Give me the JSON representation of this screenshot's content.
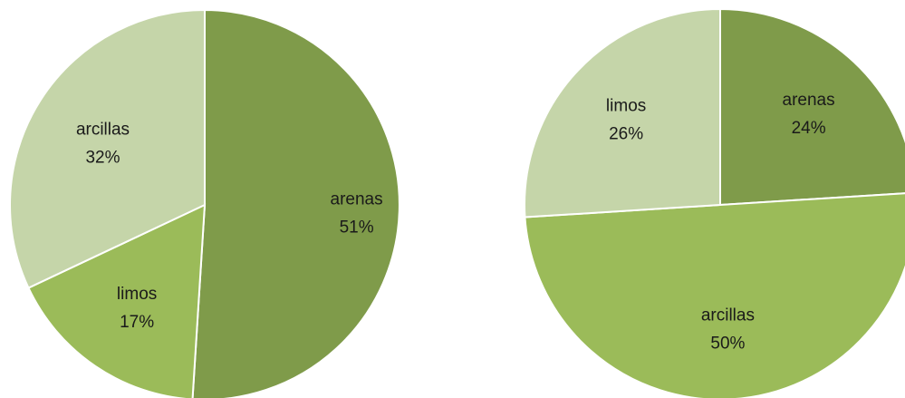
{
  "chart_data": [
    {
      "type": "pie",
      "title": "",
      "slices": [
        {
          "label": "arenas",
          "value": 51,
          "display": "51%",
          "color": "#7f9b4a"
        },
        {
          "label": "limos",
          "value": 17,
          "display": "17%",
          "color": "#9bbb59"
        },
        {
          "label": "arcillas",
          "value": 32,
          "display": "32%",
          "color": "#c5d5a9"
        }
      ],
      "start_angle_deg": 0,
      "direction": "clockwise",
      "legend": "none",
      "data_labels": "inside"
    },
    {
      "type": "pie",
      "title": "",
      "slices": [
        {
          "label": "arenas",
          "value": 24,
          "display": "24%",
          "color": "#7f9b4a"
        },
        {
          "label": "arcillas",
          "value": 50,
          "display": "50%",
          "color": "#9bbb59"
        },
        {
          "label": "limos",
          "value": 26,
          "display": "26%",
          "color": "#c5d5a9"
        }
      ],
      "start_angle_deg": 0,
      "direction": "clockwise",
      "legend": "none",
      "data_labels": "inside"
    }
  ]
}
